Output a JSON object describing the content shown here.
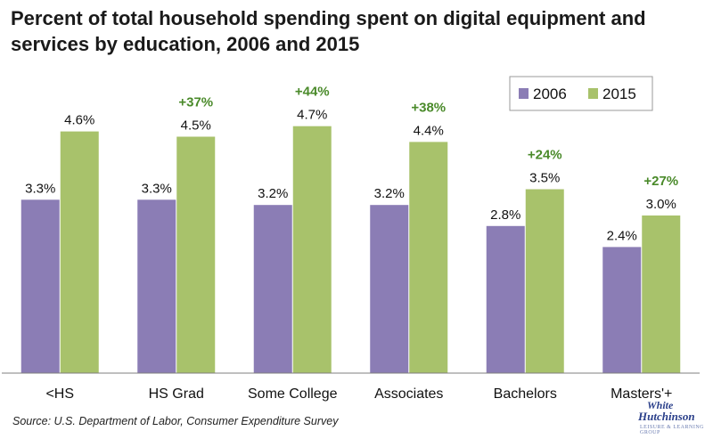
{
  "chart_data": {
    "type": "bar",
    "title": "Percent of total household spending spent on digital equipment and services by education, 2006 and 2015",
    "categories": [
      "<HS",
      "HS Grad",
      "Some College",
      "Associates",
      "Bachelors",
      "Masters'+"
    ],
    "series": [
      {
        "name": "2006",
        "color": "#8b7db5",
        "values": [
          3.3,
          3.3,
          3.2,
          3.2,
          2.8,
          2.4
        ],
        "labels": [
          "3.3%",
          "3.3%",
          "3.2%",
          "3.2%",
          "2.8%",
          "2.4%"
        ]
      },
      {
        "name": "2015",
        "color": "#a8c26b",
        "values": [
          4.6,
          4.5,
          4.7,
          4.4,
          3.5,
          3.0
        ],
        "labels": [
          "4.6%",
          "4.5%",
          "4.7%",
          "4.4%",
          "3.5%",
          "3.0%"
        ]
      }
    ],
    "annotations": [
      "",
      "+37%",
      "+44%",
      "+38%",
      "+24%",
      "+27%"
    ],
    "annotation_color": "#4a8a2a",
    "ylim": [
      0,
      5
    ],
    "grid": false,
    "legend_position": "top-right"
  },
  "source": "Source: U.S. Department of Labor, Consumer Expenditure Survey",
  "logo": {
    "line1": "White",
    "line2": "Hutchinson",
    "line3": "LEISURE & LEARNING GROUP"
  }
}
